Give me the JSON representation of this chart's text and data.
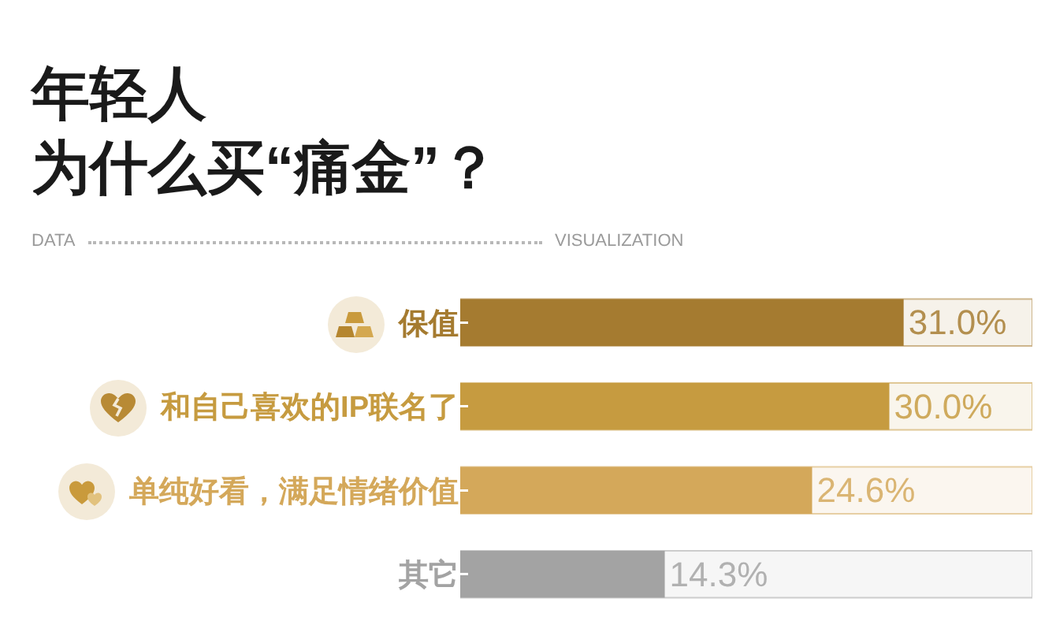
{
  "chart_data": {
    "type": "bar",
    "orientation": "horizontal",
    "title": "年轻人为什么买“痛金”？",
    "annotations": [
      "DATA",
      "VISUALIZATION"
    ],
    "categories": [
      "保值",
      "和自己喜欢的IP联名了",
      "单纯好看，满足情绪价值",
      "其它"
    ],
    "values": [
      31.0,
      30.0,
      24.6,
      14.3
    ],
    "colors": [
      "#a57b30",
      "#c69b40",
      "#d4a85a",
      "#a3a3a3"
    ],
    "value_labels": [
      "31.0%",
      "30.0%",
      "24.6%",
      "14.3%"
    ],
    "xlim": [
      0,
      40
    ],
    "tick_labels": "y"
  }
}
